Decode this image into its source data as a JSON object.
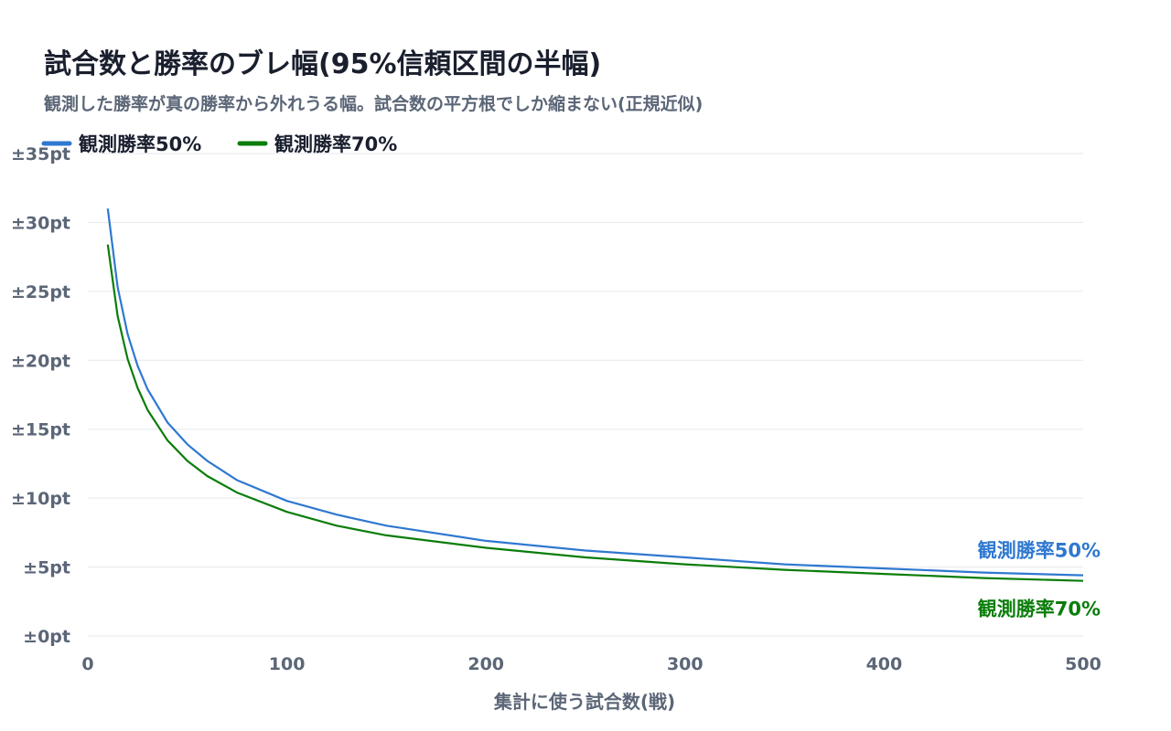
{
  "chart_data": {
    "type": "line",
    "title": "試合数と勝率のブレ幅(95%信頼区間の半幅)",
    "subtitle": "観測した勝率が真の勝率から外れうる幅。試合数の平方根でしか縮まない(正規近似)",
    "xlabel": "集計に使う試合数(戦)",
    "ylabel": "",
    "xlim": [
      0,
      500
    ],
    "ylim": [
      0,
      35
    ],
    "x_ticks": [
      0,
      100,
      200,
      300,
      400,
      500
    ],
    "y_ticks": [
      0,
      5,
      10,
      15,
      20,
      25,
      30,
      35
    ],
    "y_tick_labels": [
      "±0pt",
      "±5pt",
      "±10pt",
      "±15pt",
      "±20pt",
      "±25pt",
      "±30pt",
      "±35pt"
    ],
    "grid": true,
    "legend_position": "top-left",
    "x": [
      10,
      15,
      20,
      25,
      30,
      40,
      50,
      60,
      75,
      100,
      125,
      150,
      200,
      250,
      300,
      350,
      400,
      450,
      500
    ],
    "series": [
      {
        "name": "観測勝率50%",
        "color": "#2f78d0",
        "values": [
          31.0,
          25.3,
          21.9,
          19.6,
          17.9,
          15.5,
          13.9,
          12.7,
          11.3,
          9.8,
          8.8,
          8.0,
          6.9,
          6.2,
          5.7,
          5.2,
          4.9,
          4.6,
          4.4
        ]
      },
      {
        "name": "観測勝率70%",
        "color": "#0a7d0a",
        "values": [
          28.4,
          23.2,
          20.1,
          18.0,
          16.4,
          14.2,
          12.7,
          11.6,
          10.4,
          9.0,
          8.0,
          7.3,
          6.4,
          5.7,
          5.2,
          4.8,
          4.5,
          4.2,
          4.0
        ]
      }
    ]
  }
}
